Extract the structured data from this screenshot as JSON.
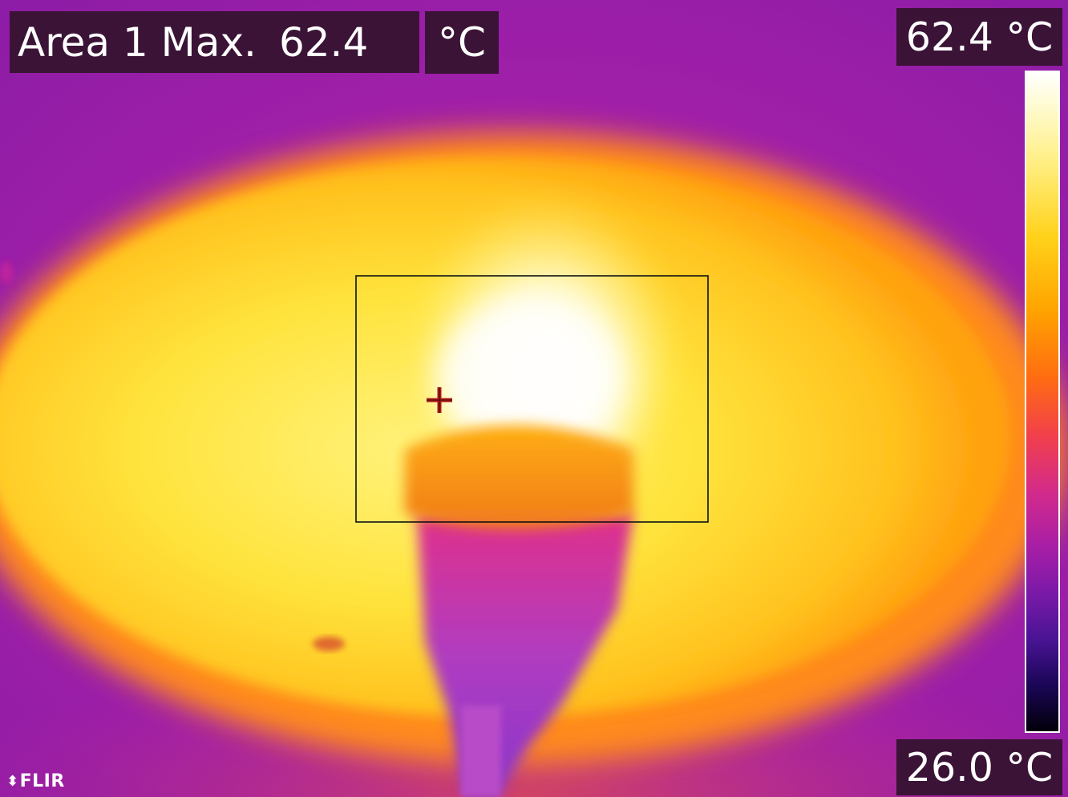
{
  "measurement": {
    "label": "Area 1 Max.",
    "value": "62.4",
    "unit": "°C"
  },
  "scale": {
    "max_label": "62.4 °C",
    "min_label": "26.0 °C",
    "palette": "iron",
    "colors": [
      "#ffffff",
      "#ffee80",
      "#ffa400",
      "#f2404a",
      "#a81ea6",
      "#4a1495",
      "#02000a"
    ]
  },
  "logo": {
    "mark": "⬍",
    "text": "FLIR"
  },
  "icons": {
    "spot": "crosshair-icon"
  }
}
